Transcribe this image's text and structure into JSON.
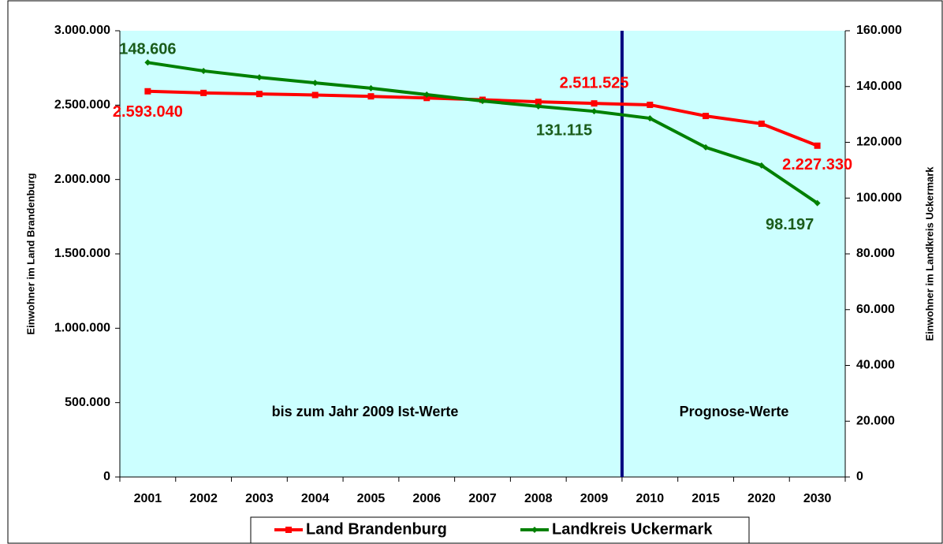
{
  "chart_data": {
    "type": "line",
    "categories": [
      "2001",
      "2002",
      "2003",
      "2004",
      "2005",
      "2006",
      "2007",
      "2008",
      "2009",
      "2010",
      "2015",
      "2020",
      "2030"
    ],
    "series": [
      {
        "name": "Land Brandenburg",
        "color": "#ff0000",
        "label_color": "#ff0000",
        "values": [
          2593040,
          2582000,
          2575000,
          2568000,
          2559000,
          2548000,
          2536000,
          2522000,
          2511525,
          2502000,
          2427000,
          2375000,
          2227330
        ],
        "value_labels": [
          "2.593.040",
          null,
          null,
          null,
          null,
          null,
          null,
          null,
          "2.511.525",
          null,
          null,
          null,
          "2.227.330"
        ]
      },
      {
        "name": "Landkreis Uckermark",
        "color": "#008000",
        "label_color": "#1a5c1a",
        "axis": "y2",
        "values": [
          148606,
          145600,
          143300,
          141300,
          139400,
          137100,
          134800,
          132900,
          131115,
          128600,
          118200,
          111700,
          98197
        ],
        "value_labels": [
          "148.606",
          null,
          null,
          null,
          null,
          null,
          null,
          null,
          "131.115",
          null,
          null,
          null,
          "98.197"
        ]
      }
    ],
    "ylabel": "Einwohner im Land Brandenburg",
    "y2label": "Einwohner im Landkreis Uckermark",
    "ylim": [
      0,
      3000000
    ],
    "yticks": [
      0,
      {
        "value": 500000,
        "label": "500.000"
      },
      {
        "value": 1000000,
        "label": "1.000.000"
      },
      {
        "value": 1500000,
        "label": "1.500.000"
      },
      {
        "value": 2000000,
        "label": "2.000.000"
      },
      {
        "value": 2500000,
        "label": "2.500.000"
      },
      {
        "value": 3000000,
        "label": "3.000.000"
      }
    ],
    "y2lim": [
      0,
      160000
    ],
    "y2ticks": [
      0,
      {
        "value": 20000,
        "label": "20.000"
      },
      {
        "value": 40000,
        "label": "40.000"
      },
      {
        "value": 60000,
        "label": "60.000"
      },
      {
        "value": 80000,
        "label": "80.000"
      },
      {
        "value": 100000,
        "label": "100.000"
      },
      {
        "value": 120000,
        "label": "120.000"
      },
      {
        "value": 140000,
        "label": "140.000"
      },
      {
        "value": 160000,
        "label": "160.000"
      }
    ],
    "annotations": [
      "bis zum Jahr 2009 Ist-Werte",
      "Prognose-Werte"
    ],
    "legend": "bottom",
    "plot_background": "#ccffff"
  }
}
